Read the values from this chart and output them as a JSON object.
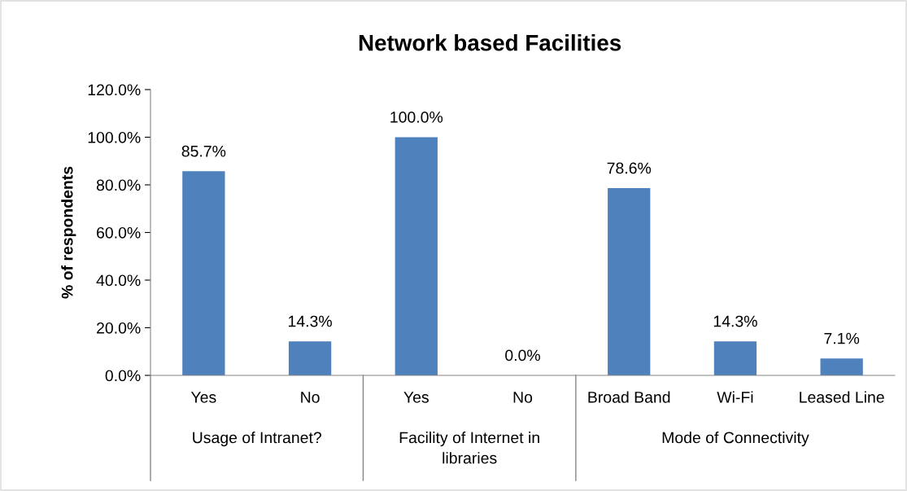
{
  "chart_data": {
    "type": "bar",
    "title": "Network based Facilities",
    "ylabel": "% of respondents",
    "categories": [
      "Yes",
      "No",
      "Yes",
      "No",
      "Broad Band",
      "Wi-Fi",
      "Leased Line"
    ],
    "values": [
      85.7,
      14.3,
      100.0,
      0.0,
      78.6,
      14.3,
      7.1
    ],
    "value_labels": [
      "85.7%",
      "14.3%",
      "100.0%",
      "0.0%",
      "78.6%",
      "14.3%",
      "7.1%"
    ],
    "color": "#4f81bd",
    "ylim": [
      0,
      120
    ],
    "yticks": [
      {
        "value": 0,
        "label": "0.0%"
      },
      {
        "value": 20,
        "label": "20.0%"
      },
      {
        "value": 40,
        "label": "40.0%"
      },
      {
        "value": 60,
        "label": "60.0%"
      },
      {
        "value": 80,
        "label": "80.0%"
      },
      {
        "value": 100,
        "label": "100.0%"
      },
      {
        "value": 120,
        "label": "120.0%"
      }
    ],
    "grid": false,
    "legend": false,
    "annotations": [
      "Usage of Intranet?",
      "Facility of Internet in\nlibraries",
      "Mode of Connectivity"
    ]
  }
}
